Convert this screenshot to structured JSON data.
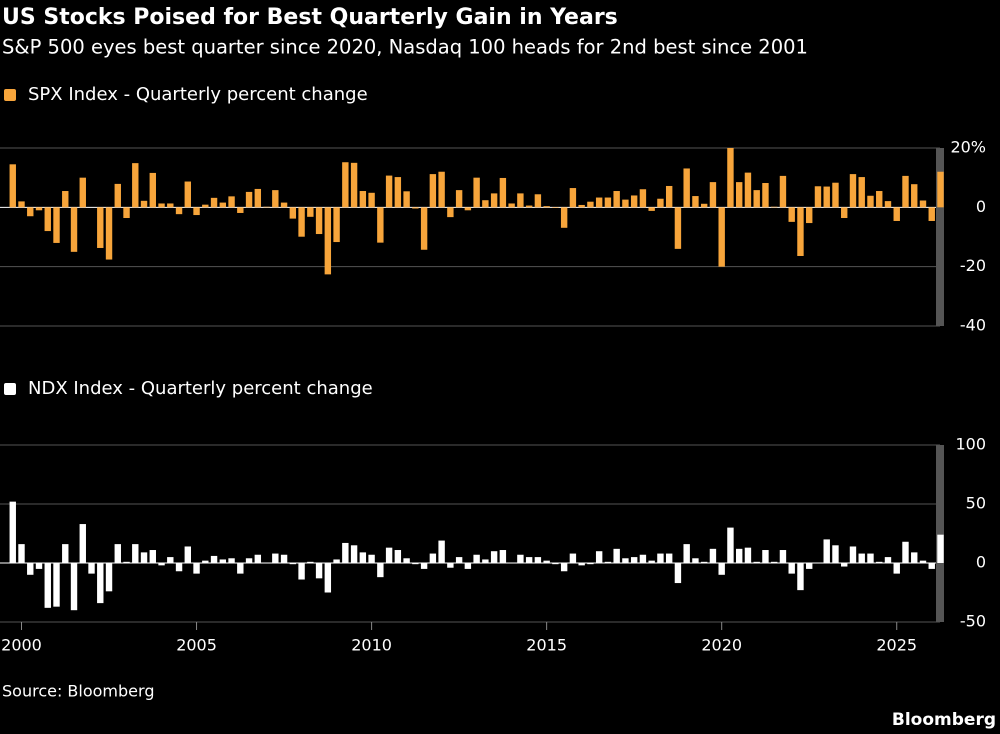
{
  "title": "US Stocks Poised for Best Quarterly Gain in Years",
  "subtitle": "S&P 500 eyes best quarter since 2020, Nasdaq 100 heads for 2nd best since 2001",
  "source": "Source: Bloomberg",
  "brand": "Bloomberg",
  "chart_data": [
    {
      "type": "bar",
      "series": [
        {
          "name": "SPX Index - Quarterly percent change",
          "color": "#f7a53b",
          "values": [
            14.5,
            2,
            -3,
            -1,
            -8,
            -12,
            5.5,
            -15,
            10,
            0,
            -13.7,
            -17.6,
            7.9,
            -3.6,
            14.9,
            2.2,
            11.6,
            1.3,
            1.3,
            -2.3,
            8.7,
            -2.6,
            0.9,
            3.2,
            1.6,
            3.7,
            -1.9,
            5.2,
            6.2,
            0.2,
            5.8,
            1.6,
            -3.8,
            -9.9,
            -3.2,
            -9,
            -22.6,
            -11.7,
            15.2,
            15,
            5.5,
            4.9,
            -11.9,
            10.7,
            10.2,
            5.4,
            -0.4,
            -14.3,
            11.2,
            12,
            -3.3,
            5.8,
            -1,
            10,
            2.4,
            4.7,
            9.9,
            1.3,
            4.7,
            0.6,
            4.4,
            0.4,
            -0.2,
            -6.9,
            6.5,
            0.8,
            1.9,
            3.3,
            3.3,
            5.5,
            2.6,
            4,
            6.1,
            -1.2,
            2.9,
            7.2,
            -14,
            13.1,
            3.8,
            1.2,
            8.5,
            -20,
            20,
            8.5,
            11.7,
            5.8,
            8.2,
            0.2,
            10.6,
            -4.9,
            -16.4,
            -5.3,
            7.1,
            7,
            8.3,
            -3.6,
            11.2,
            10.2,
            3.9,
            5.5,
            2.1,
            -4.6,
            10.6,
            7.8,
            2.3,
            -4.6,
            12
          ]
        }
      ],
      "x": [
        1999.75,
        2000,
        2000.25,
        2000.5,
        2000.75,
        2001,
        2001.25,
        2001.5,
        2001.75,
        2002,
        2002.25,
        2002.5,
        2002.75,
        2003,
        2003.25,
        2003.5,
        2003.75,
        2004,
        2004.25,
        2004.5,
        2004.75,
        2005,
        2005.25,
        2005.5,
        2005.75,
        2006,
        2006.25,
        2006.5,
        2006.75,
        2007,
        2007.25,
        2007.5,
        2007.75,
        2008,
        2008.25,
        2008.5,
        2008.75,
        2009,
        2009.25,
        2009.5,
        2009.75,
        2010,
        2010.25,
        2010.5,
        2010.75,
        2011,
        2011.25,
        2011.5,
        2011.75,
        2012,
        2012.25,
        2012.5,
        2012.75,
        2013,
        2013.25,
        2013.5,
        2013.75,
        2014,
        2014.25,
        2014.5,
        2014.75,
        2015,
        2015.25,
        2015.5,
        2015.75,
        2016,
        2016.25,
        2016.5,
        2016.75,
        2017,
        2017.25,
        2017.5,
        2017.75,
        2018,
        2018.25,
        2018.5,
        2018.75,
        2019,
        2019.25,
        2019.5,
        2019.75,
        2020,
        2020.25,
        2020.5,
        2020.75,
        2021,
        2021.25,
        2021.5,
        2021.75,
        2022,
        2022.25,
        2022.5,
        2022.75,
        2023,
        2023.25,
        2023.5,
        2023.75,
        2024,
        2024.25,
        2024.5,
        2024.75,
        2025,
        2025.25,
        2025.5,
        2025.75,
        2026,
        2026.25
      ],
      "xlim": [
        1999.5,
        2026.75
      ],
      "ylim": [
        -40,
        20
      ],
      "yticks": [
        {
          "value": 20,
          "label": "20%"
        },
        0,
        -20,
        -40
      ],
      "grid": true
    },
    {
      "type": "bar",
      "series": [
        {
          "name": "NDX Index - Quarterly percent change",
          "color": "#ffffff",
          "values": [
            52,
            16,
            -10,
            -5,
            -38,
            -37,
            16,
            -40,
            33,
            -9,
            -34,
            -24,
            16,
            1,
            16,
            9,
            11,
            -2,
            5,
            -7,
            14,
            -9,
            2,
            6,
            3,
            4,
            -9,
            4,
            7,
            0,
            8,
            7,
            -1,
            -14,
            1,
            -13,
            -25,
            3,
            17,
            15,
            9,
            7,
            -12,
            13,
            11,
            4,
            -1,
            -5,
            8,
            19,
            -4,
            5,
            -5,
            7,
            3,
            10,
            11,
            0,
            7,
            5,
            5,
            2,
            -1,
            -7,
            8,
            -2,
            -1,
            10,
            1,
            12,
            4,
            5,
            7,
            2,
            8,
            8,
            -17,
            16,
            4,
            1,
            12,
            -10,
            30,
            12,
            13,
            1,
            11,
            1,
            11,
            -9,
            -23,
            -5,
            0,
            20,
            15,
            -3,
            14,
            8,
            8,
            1,
            5,
            -9,
            18,
            9,
            2,
            -5,
            24
          ]
        }
      ],
      "x": [
        1999.75,
        2000,
        2000.25,
        2000.5,
        2000.75,
        2001,
        2001.25,
        2001.5,
        2001.75,
        2002,
        2002.25,
        2002.5,
        2002.75,
        2003,
        2003.25,
        2003.5,
        2003.75,
        2004,
        2004.25,
        2004.5,
        2004.75,
        2005,
        2005.25,
        2005.5,
        2005.75,
        2006,
        2006.25,
        2006.5,
        2006.75,
        2007,
        2007.25,
        2007.5,
        2007.75,
        2008,
        2008.25,
        2008.5,
        2008.75,
        2009,
        2009.25,
        2009.5,
        2009.75,
        2010,
        2010.25,
        2010.5,
        2010.75,
        2011,
        2011.25,
        2011.5,
        2011.75,
        2012,
        2012.25,
        2012.5,
        2012.75,
        2013,
        2013.25,
        2013.5,
        2013.75,
        2014,
        2014.25,
        2014.5,
        2014.75,
        2015,
        2015.25,
        2015.5,
        2015.75,
        2016,
        2016.25,
        2016.5,
        2016.75,
        2017,
        2017.25,
        2017.5,
        2017.75,
        2018,
        2018.25,
        2018.5,
        2018.75,
        2019,
        2019.25,
        2019.5,
        2019.75,
        2020,
        2020.25,
        2020.5,
        2020.75,
        2021,
        2021.25,
        2021.5,
        2021.75,
        2022,
        2022.25,
        2022.5,
        2022.75,
        2023,
        2023.25,
        2023.5,
        2023.75,
        2024,
        2024.25,
        2024.5,
        2024.75,
        2025,
        2025.25,
        2025.5,
        2025.75,
        2026,
        2026.25
      ],
      "xlim": [
        1999.5,
        2026.75
      ],
      "ylim": [
        -50,
        100
      ],
      "yticks": [
        100,
        50,
        0,
        -50
      ],
      "xticks": [
        2000,
        2005,
        2010,
        2015,
        2020,
        2025
      ],
      "grid": true
    }
  ]
}
